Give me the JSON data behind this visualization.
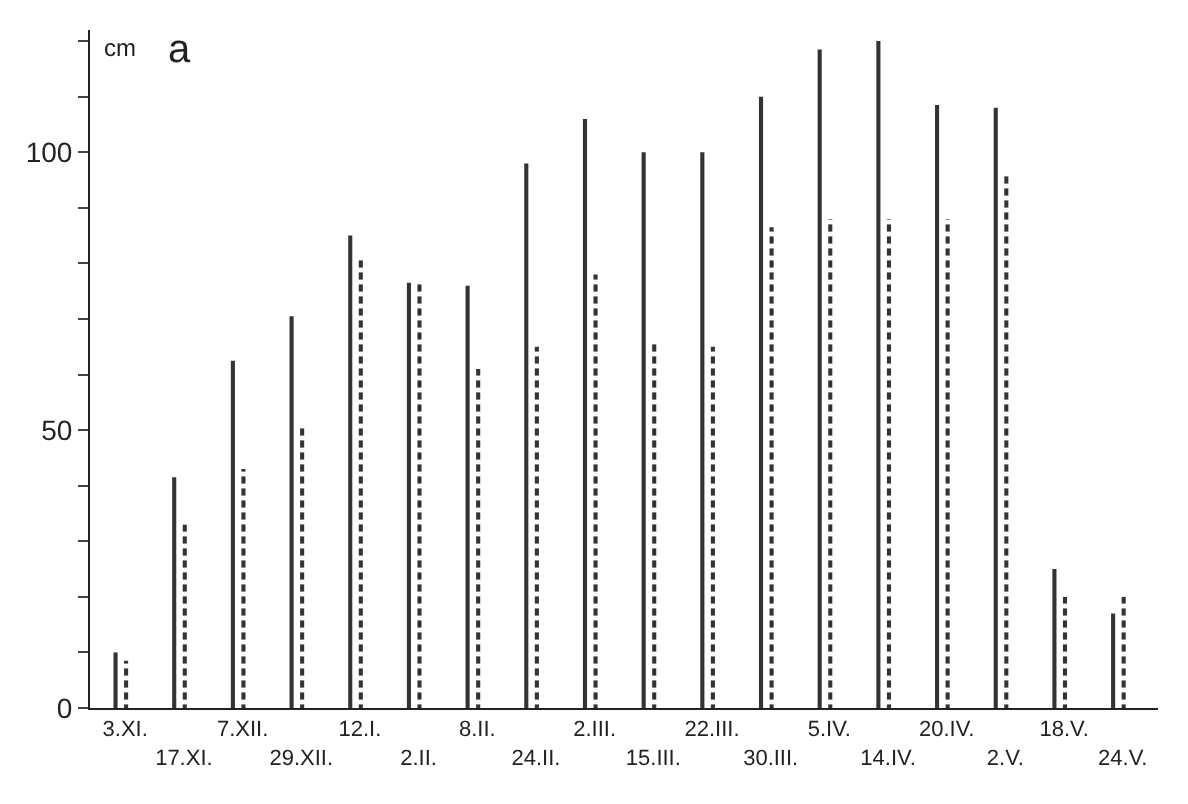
{
  "chart_data": {
    "type": "bar",
    "title": "a",
    "ylabel": "cm",
    "categories": [
      "3.XI.",
      "17.XI.",
      "7.XII.",
      "29.XII.",
      "12.I.",
      "2.II.",
      "8.II.",
      "24.II.",
      "2.III.",
      "15.III.",
      "22.III.",
      "30.III.",
      "5.IV.",
      "14.IV.",
      "20.IV.",
      "2.V.",
      "18.V.",
      "24.V."
    ],
    "series": [
      {
        "color": "#333333",
        "line_style": "solid",
        "values": [
          10,
          41.5,
          62.5,
          70.5,
          85,
          76.5,
          76,
          98,
          106,
          100,
          100,
          110,
          118.5,
          120,
          108.5,
          108,
          25,
          17
        ]
      },
      {
        "color": "#333333",
        "line_style": "dashed",
        "values": [
          8.5,
          33,
          43,
          50.5,
          81,
          76.5,
          61,
          65,
          78,
          65.5,
          65,
          86.5,
          88,
          88,
          88,
          96,
          20,
          20
        ]
      }
    ],
    "ylim": [
      0,
      122
    ],
    "yticks": [
      0,
      {
        "value": 10,
        "label": null
      },
      {
        "value": 20,
        "label": null
      },
      {
        "value": 30,
        "label": null
      },
      {
        "value": 40,
        "label": null
      },
      50,
      {
        "value": 60,
        "label": null
      },
      {
        "value": 70,
        "label": null
      },
      {
        "value": 80,
        "label": null
      },
      {
        "value": 90,
        "label": null
      },
      100,
      {
        "value": 110,
        "label": null
      },
      {
        "value": 120,
        "label": null
      }
    ]
  }
}
